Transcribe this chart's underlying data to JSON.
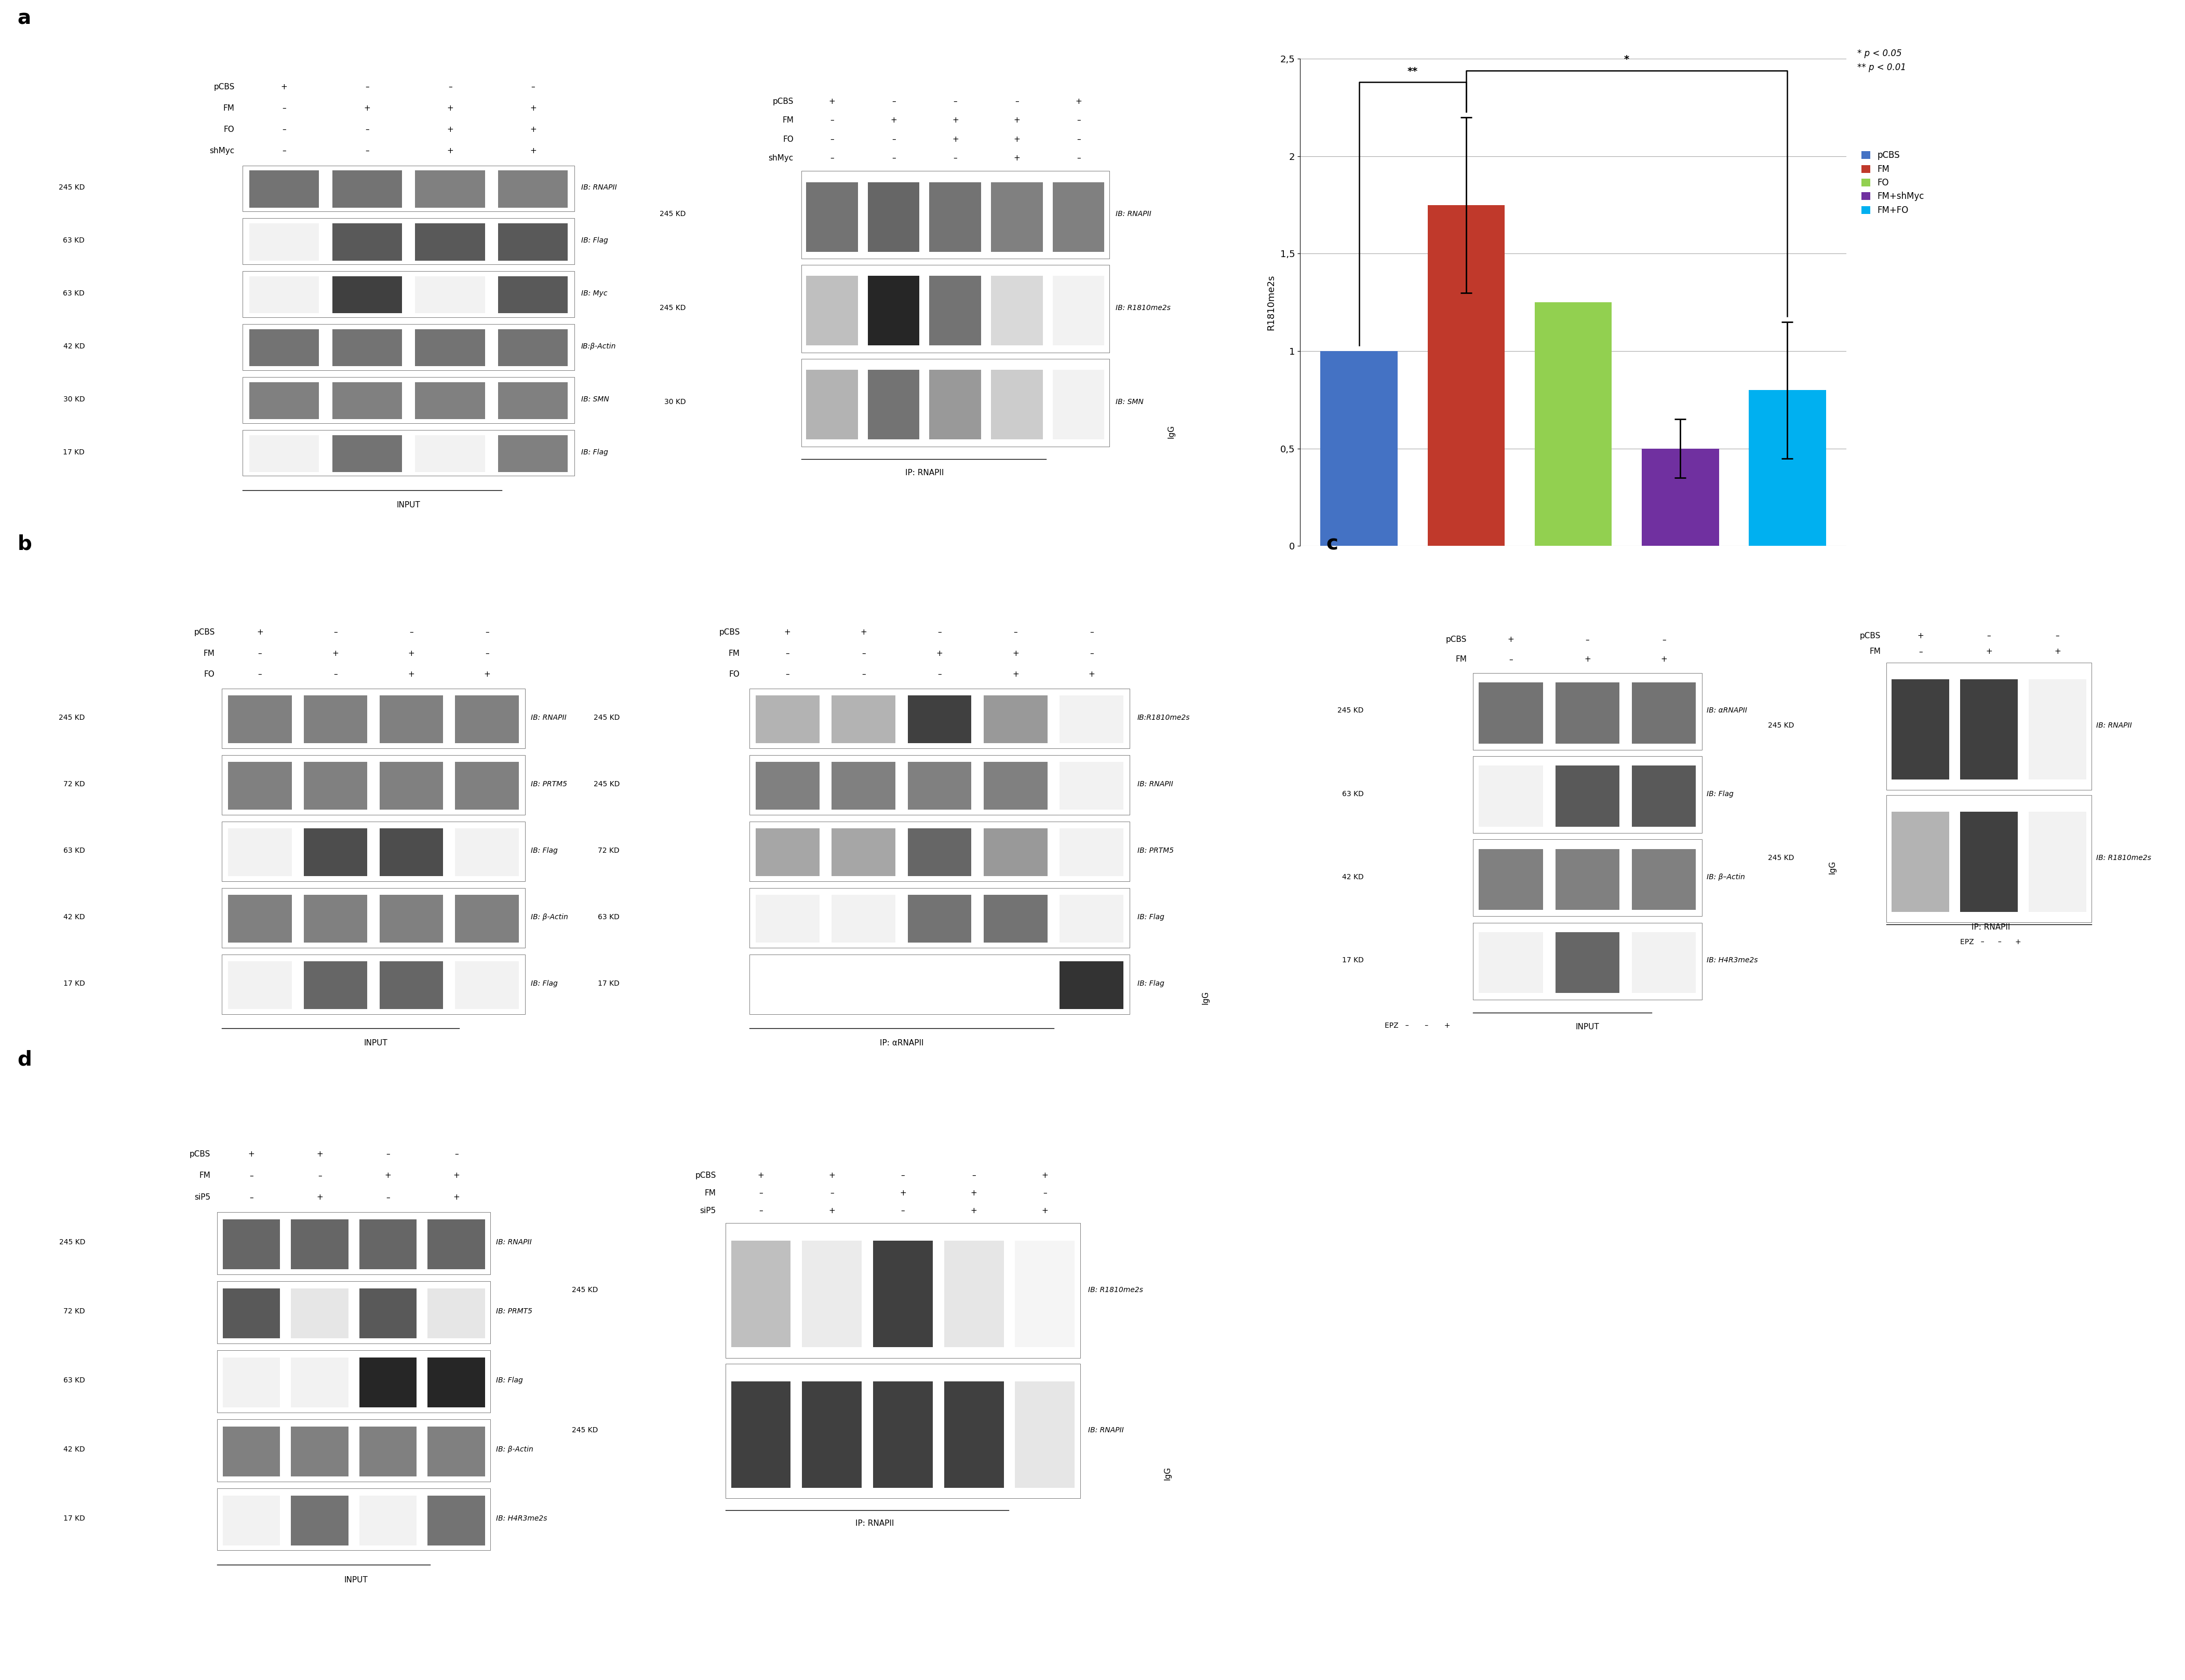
{
  "bar_values": [
    1.0,
    1.75,
    1.25,
    0.5,
    0.8
  ],
  "bar_errors": [
    0.0,
    0.45,
    0.0,
    0.15,
    0.35
  ],
  "bar_colors": [
    "#4472C4",
    "#C0392B",
    "#92D050",
    "#7030A0",
    "#00B0F0"
  ],
  "bar_labels": [
    "pCBS",
    "FM",
    "FO",
    "FM+shMyc",
    "FM+FO"
  ],
  "ylabel": "R1810me2s",
  "ylim": [
    0,
    2.5
  ],
  "yticks": [
    0,
    0.5,
    1.0,
    1.5,
    2.0,
    2.5
  ],
  "ytick_labels": [
    "0",
    "0,5",
    "1",
    "1,5",
    "2",
    "2,5"
  ],
  "fig_bg": "#FFFFFF",
  "panel_label_fontsize": 28,
  "sig_note1": "* p < 0.05",
  "sig_note2": "** p < 0.01"
}
